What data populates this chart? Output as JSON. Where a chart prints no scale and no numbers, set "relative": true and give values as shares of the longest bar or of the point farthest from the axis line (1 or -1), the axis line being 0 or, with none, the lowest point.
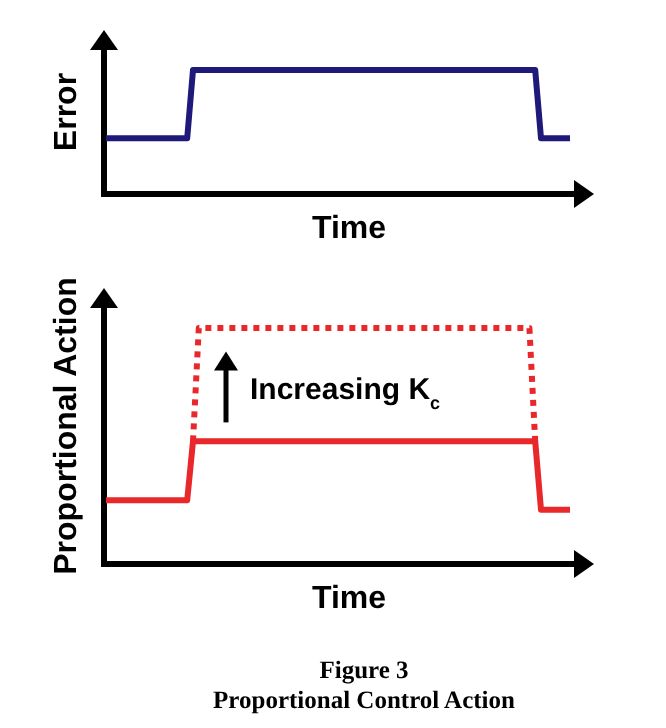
{
  "chart_data": [
    {
      "type": "line",
      "relative": true,
      "xlabel": "Time",
      "ylabel": "Error",
      "categories": [
        null,
        null,
        null,
        null,
        null,
        null,
        null,
        null,
        null,
        null,
        null,
        null,
        null,
        null,
        null,
        null,
        null,
        null,
        null,
        null,
        null,
        null,
        null,
        null,
        null,
        null,
        null,
        null,
        null,
        null,
        null,
        null,
        null,
        null,
        null,
        null,
        null,
        null,
        null,
        null,
        null,
        null,
        null,
        null,
        null,
        null,
        null,
        null,
        null,
        null,
        null,
        null,
        null,
        null,
        null,
        null,
        null,
        null,
        null,
        null,
        null,
        null,
        null,
        null,
        null,
        null,
        null,
        null,
        null,
        null,
        null,
        null,
        null,
        null,
        null,
        null,
        null,
        null,
        null,
        null,
        null
      ],
      "series": [
        {
          "color": "#1f1a7a",
          "values": [
            0.45,
            0.45,
            0.45,
            0.45,
            0.45,
            0.45,
            0.45,
            0.45,
            0.45,
            0.45,
            0.45,
            0.45,
            0.45,
            0.45,
            0.45,
            1,
            1,
            1,
            1,
            1,
            1,
            1,
            1,
            1,
            1,
            1,
            1,
            1,
            1,
            1,
            1,
            1,
            1,
            1,
            1,
            1,
            1,
            1,
            1,
            1,
            1,
            1,
            1,
            1,
            1,
            1,
            1,
            1,
            1,
            1,
            1,
            1,
            1,
            1,
            1,
            1,
            1,
            1,
            1,
            1,
            1,
            1,
            1,
            1,
            1,
            1,
            1,
            1,
            1,
            1,
            1,
            1,
            1,
            1,
            1,
            0.45,
            0.45,
            0.45,
            0.45,
            0.45,
            0.45
          ]
        }
      ]
    },
    {
      "type": "line",
      "relative": true,
      "xlabel": "Time",
      "ylabel": "Proportional Action",
      "categories": [
        null,
        null,
        null,
        null,
        null,
        null,
        null,
        null,
        null,
        null,
        null,
        null,
        null,
        null,
        null,
        null,
        null,
        null,
        null,
        null,
        null,
        null,
        null,
        null,
        null,
        null,
        null,
        null,
        null,
        null,
        null,
        null,
        null,
        null,
        null,
        null,
        null,
        null,
        null,
        null,
        null,
        null,
        null,
        null,
        null,
        null,
        null,
        null,
        null,
        null,
        null,
        null,
        null,
        null,
        null,
        null,
        null,
        null,
        null,
        null,
        null,
        null,
        null,
        null,
        null,
        null,
        null,
        null,
        null,
        null,
        null,
        null,
        null,
        null,
        null,
        null,
        null,
        null,
        null,
        null,
        null
      ],
      "series": [
        {
          "color": "#e8282b",
          "values": [
            0.27,
            0.27,
            0.27,
            0.27,
            0.27,
            0.27,
            0.27,
            0.27,
            0.27,
            0.27,
            0.27,
            0.27,
            0.27,
            0.27,
            0.27,
            0.52,
            0.52,
            0.52,
            0.52,
            0.52,
            0.52,
            0.52,
            0.52,
            0.52,
            0.52,
            0.52,
            0.52,
            0.52,
            0.52,
            0.52,
            0.52,
            0.52,
            0.52,
            0.52,
            0.52,
            0.52,
            0.52,
            0.52,
            0.52,
            0.52,
            0.52,
            0.52,
            0.52,
            0.52,
            0.52,
            0.52,
            0.52,
            0.52,
            0.52,
            0.52,
            0.52,
            0.52,
            0.52,
            0.52,
            0.52,
            0.52,
            0.52,
            0.52,
            0.52,
            0.52,
            0.52,
            0.52,
            0.52,
            0.52,
            0.52,
            0.52,
            0.52,
            0.52,
            0.52,
            0.52,
            0.52,
            0.52,
            0.52,
            0.52,
            0.52,
            0.23,
            0.23,
            0.23,
            0.23,
            0.23,
            0.23
          ]
        },
        {
          "color": "#e8282b",
          "line_style": "dotted",
          "values": [
            null,
            null,
            null,
            null,
            null,
            null,
            null,
            null,
            null,
            null,
            null,
            null,
            null,
            null,
            null,
            0.52,
            1,
            1,
            1,
            1,
            1,
            1,
            1,
            1,
            1,
            1,
            1,
            1,
            1,
            1,
            1,
            1,
            1,
            1,
            1,
            1,
            1,
            1,
            1,
            1,
            1,
            1,
            1,
            1,
            1,
            1,
            1,
            1,
            1,
            1,
            1,
            1,
            1,
            1,
            1,
            1,
            1,
            1,
            1,
            1,
            1,
            1,
            1,
            1,
            1,
            1,
            1,
            1,
            1,
            1,
            1,
            1,
            1,
            1,
            0.52,
            null,
            null,
            null,
            null,
            null,
            null
          ]
        }
      ],
      "annotations": [
        "Increasing K$_{c}$",
        "Figure 3",
        "Proportional Control Action"
      ]
    }
  ]
}
